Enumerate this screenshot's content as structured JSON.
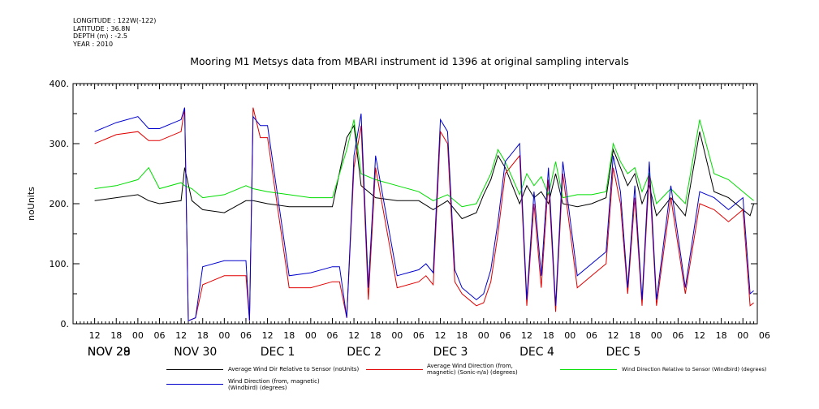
{
  "header": {
    "lines": [
      "LONGITUDE : 122W(-122)",
      "LATITUDE : 36.8N",
      "DEPTH (m) : -2.5",
      "YEAR : 2010"
    ]
  },
  "title": "Mooring M1 Metsys data from MBARI instrument id 1396 at original sampling intervals",
  "legend": [
    {
      "name": "Average Wind Dir Relative to Sensor (noUnits)",
      "color": "#000000"
    },
    {
      "name": "Average Wind Direction (from, magnetic) (Sonic-n/a) (degrees)",
      "color": "#e00000"
    },
    {
      "name": "Wind Direction Relative to Sensor (Windbird) (degrees)",
      "color": "#00dd00"
    },
    {
      "name": "Wind Direction (from, magnetic) (Windbird) (degrees)",
      "color": "#0000cc"
    }
  ],
  "chart_data": {
    "type": "line",
    "ylabel": "noUnits",
    "ylim": [
      0,
      400
    ],
    "yticks": [
      "0.",
      "100.",
      "200.",
      "300.",
      "400."
    ],
    "xlim_hours": [
      0,
      190
    ],
    "hour_ticks": [
      "12",
      "18",
      "00",
      "06",
      "12",
      "18",
      "00",
      "06",
      "12",
      "18",
      "00",
      "06",
      "12",
      "18",
      "00",
      "06",
      "12",
      "18",
      "00",
      "06",
      "12",
      "18",
      "00",
      "06",
      "12",
      "18",
      "00",
      "06",
      "12",
      "18",
      "00",
      "06"
    ],
    "day_labels": [
      "NOV 28",
      "NOV 29",
      "NOV 30",
      "DEC  1",
      "DEC  2",
      "DEC  3",
      "DEC  4",
      "DEC  5"
    ],
    "series": [
      {
        "name": "Average Wind Dir Relative to Sensor (noUnits)",
        "x": [
          6,
          12,
          18,
          21,
          24,
          30,
          31,
          33,
          36,
          42,
          48,
          50,
          54,
          60,
          66,
          72,
          76,
          78,
          80,
          84,
          90,
          96,
          100,
          104,
          108,
          112,
          114,
          116,
          118,
          120,
          124,
          126,
          128,
          130,
          132,
          134,
          136,
          140,
          144,
          148,
          150,
          152,
          154,
          156,
          158,
          160,
          162,
          166,
          170,
          174,
          178,
          182,
          186,
          188,
          189
        ],
        "y": [
          205,
          210,
          215,
          205,
          200,
          205,
          260,
          205,
          190,
          185,
          205,
          205,
          200,
          195,
          195,
          195,
          310,
          330,
          230,
          210,
          205,
          205,
          190,
          205,
          175,
          185,
          215,
          240,
          280,
          260,
          200,
          230,
          210,
          220,
          200,
          250,
          200,
          195,
          200,
          210,
          290,
          260,
          230,
          250,
          200,
          230,
          180,
          210,
          180,
          320,
          220,
          210,
          190,
          180,
          200
        ]
      },
      {
        "name": "Average Wind Direction (from, magnetic) (Sonic-n/a) (degrees)",
        "x": [
          6,
          12,
          18,
          21,
          24,
          30,
          31,
          32,
          34,
          36,
          42,
          48,
          49,
          50,
          52,
          54,
          60,
          66,
          72,
          74,
          76,
          78,
          80,
          82,
          84,
          90,
          96,
          98,
          100,
          102,
          104,
          106,
          108,
          112,
          114,
          116,
          118,
          120,
          124,
          126,
          128,
          130,
          132,
          134,
          136,
          140,
          144,
          148,
          150,
          152,
          154,
          156,
          158,
          160,
          162,
          166,
          170,
          174,
          178,
          182,
          186,
          188,
          189
        ],
        "y": [
          300,
          315,
          320,
          305,
          305,
          320,
          360,
          5,
          10,
          65,
          80,
          80,
          5,
          360,
          310,
          310,
          60,
          60,
          70,
          70,
          10,
          260,
          330,
          40,
          260,
          60,
          70,
          80,
          65,
          320,
          300,
          70,
          50,
          30,
          35,
          70,
          150,
          250,
          280,
          30,
          200,
          60,
          240,
          20,
          250,
          60,
          80,
          100,
          260,
          200,
          50,
          210,
          30,
          250,
          30,
          210,
          50,
          200,
          190,
          170,
          190,
          30,
          35
        ]
      },
      {
        "name": "Wind Direction Relative to Sensor (Windbird) (degrees)",
        "x": [
          6,
          12,
          18,
          21,
          24,
          30,
          31,
          33,
          36,
          42,
          48,
          50,
          54,
          60,
          66,
          72,
          76,
          78,
          80,
          84,
          90,
          96,
          100,
          104,
          108,
          112,
          114,
          116,
          118,
          120,
          124,
          126,
          128,
          130,
          132,
          134,
          136,
          140,
          144,
          148,
          150,
          152,
          154,
          156,
          158,
          160,
          162,
          166,
          170,
          174,
          178,
          182,
          186,
          188,
          189
        ],
        "y": [
          225,
          230,
          240,
          260,
          225,
          235,
          230,
          225,
          210,
          215,
          230,
          225,
          220,
          215,
          210,
          210,
          290,
          340,
          250,
          240,
          230,
          220,
          205,
          215,
          195,
          200,
          225,
          250,
          290,
          270,
          215,
          250,
          230,
          245,
          215,
          270,
          210,
          215,
          215,
          220,
          300,
          270,
          250,
          260,
          220,
          250,
          200,
          225,
          200,
          340,
          250,
          240,
          220,
          210,
          205
        ]
      },
      {
        "name": "Wind Direction (from, magnetic) (Windbird) (degrees)",
        "x": [
          6,
          12,
          18,
          21,
          24,
          30,
          31,
          32,
          34,
          36,
          42,
          48,
          49,
          50,
          52,
          54,
          60,
          66,
          72,
          74,
          76,
          78,
          80,
          82,
          84,
          90,
          96,
          98,
          100,
          102,
          104,
          106,
          108,
          112,
          114,
          116,
          118,
          120,
          124,
          126,
          128,
          130,
          132,
          134,
          136,
          140,
          144,
          148,
          150,
          152,
          154,
          156,
          158,
          160,
          162,
          166,
          170,
          174,
          178,
          182,
          186,
          188,
          189
        ],
        "y": [
          320,
          335,
          345,
          325,
          325,
          340,
          360,
          5,
          10,
          95,
          105,
          105,
          5,
          345,
          330,
          330,
          80,
          85,
          95,
          95,
          10,
          280,
          350,
          60,
          280,
          80,
          90,
          100,
          85,
          340,
          320,
          90,
          60,
          40,
          50,
          90,
          170,
          270,
          300,
          40,
          220,
          80,
          260,
          30,
          270,
          80,
          100,
          120,
          280,
          220,
          60,
          230,
          40,
          270,
          40,
          230,
          60,
          220,
          210,
          190,
          210,
          50,
          55
        ]
      }
    ]
  }
}
